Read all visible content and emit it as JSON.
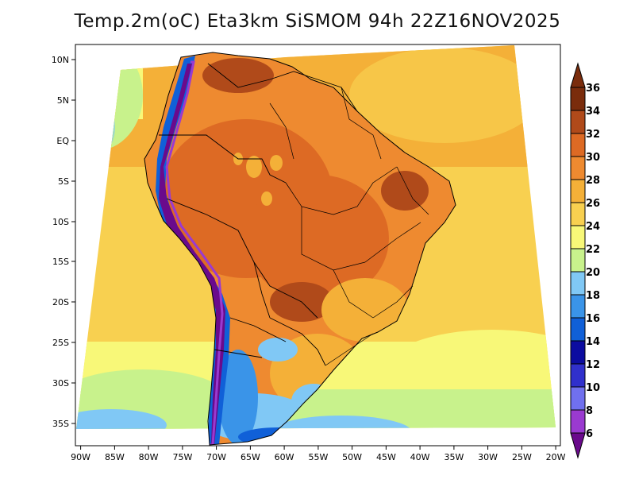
{
  "title": "Temp.2m(oC) Eta3km SiSMOM 94h 22Z16NOV2025",
  "map": {
    "lon_labels": [
      "90W",
      "85W",
      "80W",
      "75W",
      "70W",
      "65W",
      "60W",
      "55W",
      "50W",
      "45W",
      "40W",
      "35W",
      "30W",
      "25W",
      "20W"
    ],
    "lat_labels": [
      "10N",
      "5N",
      "EQ",
      "5S",
      "10S",
      "15S",
      "20S",
      "25S",
      "30S",
      "35S"
    ]
  },
  "colorbar": {
    "labels": [
      "6",
      "8",
      "10",
      "12",
      "14",
      "16",
      "18",
      "20",
      "22",
      "24",
      "26",
      "28",
      "30",
      "32",
      "34",
      "36"
    ],
    "colors": [
      "#6a0a8c",
      "#9a3ad0",
      "#7070ee",
      "#3030cc",
      "#0c0ca0",
      "#1060d8",
      "#3a94e8",
      "#80c8f5",
      "#c8f28c",
      "#f8f878",
      "#f8d050",
      "#f4b038",
      "#ee8a30",
      "#dd6a24",
      "#b04a1a",
      "#7a2c0c"
    ]
  }
}
